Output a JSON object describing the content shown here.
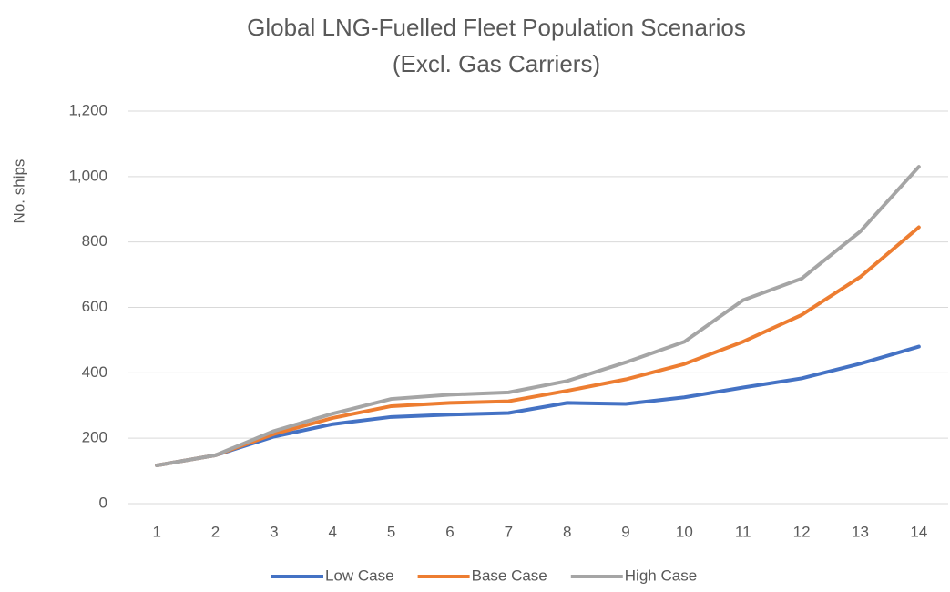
{
  "chart_data": {
    "type": "line",
    "title": "Global LNG-Fuelled Fleet Population Scenarios",
    "subtitle": "(Excl. Gas Carriers)",
    "y_label": "No. ships",
    "categories": [
      "1",
      "2",
      "3",
      "4",
      "5",
      "6",
      "7",
      "8",
      "9",
      "10",
      "11",
      "12",
      "13",
      "14"
    ],
    "series": [
      {
        "name": "Low Case",
        "color": "#4472c4",
        "values": [
          117,
          148,
          205,
          243,
          265,
          272,
          277,
          308,
          305,
          325,
          355,
          383,
          428,
          480
        ]
      },
      {
        "name": "Base Case",
        "color": "#ed7d31",
        "values": [
          117,
          148,
          213,
          262,
          298,
          308,
          313,
          345,
          380,
          427,
          495,
          577,
          693,
          845
        ]
      },
      {
        "name": "High Case",
        "color": "#a5a5a5",
        "values": [
          117,
          148,
          222,
          275,
          320,
          333,
          340,
          375,
          432,
          495,
          622,
          688,
          832,
          1030
        ]
      }
    ],
    "ylim": [
      0,
      1200
    ],
    "yticks": [
      0,
      200,
      400,
      600,
      800,
      {
        "value": 1000,
        "label": "1,000"
      },
      {
        "value": 1200,
        "label": "1,200"
      }
    ],
    "grid": true,
    "legend": "bottom"
  }
}
